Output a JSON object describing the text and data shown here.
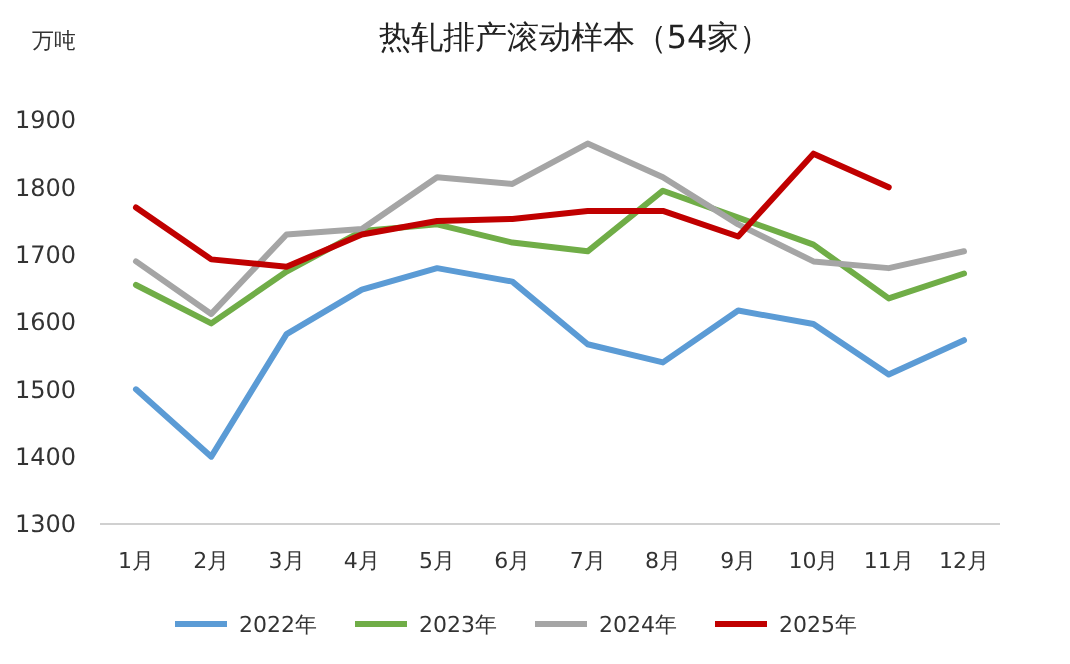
{
  "chart_data": {
    "type": "line",
    "title": "热轧排产滚动样本（54家）",
    "ylabel": "万吨",
    "categories": [
      "1月",
      "2月",
      "3月",
      "4月",
      "5月",
      "6月",
      "7月",
      "8月",
      "9月",
      "10月",
      "11月",
      "12月"
    ],
    "ylim": [
      1300,
      1900
    ],
    "yticks": [
      1300,
      1400,
      1500,
      1600,
      1700,
      1800,
      1900
    ],
    "grid": false,
    "legend": "bottom",
    "marker": "none",
    "series": [
      {
        "name": "2022年",
        "color": "#5b9bd5",
        "values": [
          1500,
          1400,
          1582,
          1648,
          1680,
          1660,
          1567,
          1540,
          1617,
          1597,
          1522,
          1573
        ]
      },
      {
        "name": "2023年",
        "color": "#70ad47",
        "values": [
          1655,
          1598,
          1675,
          1735,
          1745,
          1718,
          1705,
          1795,
          1755,
          1715,
          1635,
          1672
        ]
      },
      {
        "name": "2024年",
        "color": "#a5a5a5",
        "values": [
          1690,
          1612,
          1730,
          1738,
          1815,
          1805,
          1865,
          1815,
          1745,
          1690,
          1680,
          1705
        ]
      },
      {
        "name": "2025年",
        "color": "#c00000",
        "values": [
          1770,
          1693,
          1682,
          1730,
          1750,
          1753,
          1765,
          1765,
          1727,
          1850,
          1800,
          null
        ]
      }
    ]
  }
}
